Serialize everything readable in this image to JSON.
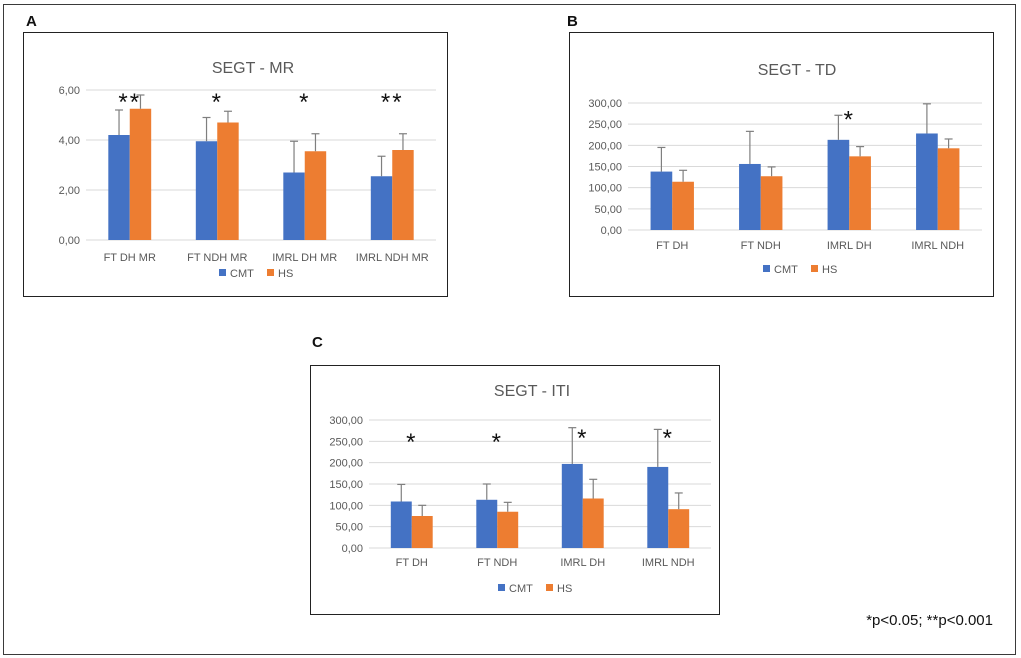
{
  "panels": {
    "a": {
      "letter": "A"
    },
    "b": {
      "letter": "B"
    },
    "c": {
      "letter": "C"
    }
  },
  "footnote": "*p<0.05; **p<0.001",
  "colors": {
    "cmt": "#4472C4",
    "hs": "#ED7D31",
    "grid": "#d9d9d9",
    "errorbar": "#7f7f7f"
  },
  "chart_data": [
    {
      "id": "A",
      "type": "bar",
      "title": "SEGT - MR",
      "categories": [
        "FT DH MR",
        "FT NDH MR",
        "IMRL DH MR",
        "IMRL NDH MR"
      ],
      "series": [
        {
          "name": "CMT",
          "values": [
            4.2,
            3.95,
            2.7,
            2.55
          ],
          "errors": [
            1.0,
            0.95,
            1.25,
            0.8
          ]
        },
        {
          "name": "HS",
          "values": [
            5.25,
            4.7,
            3.55,
            3.6
          ],
          "errors": [
            0.55,
            0.45,
            0.7,
            0.65
          ]
        }
      ],
      "ylim": [
        0,
        6
      ],
      "yticks": [
        0,
        2,
        4,
        6
      ],
      "yticklabels": [
        "0,00",
        "2,00",
        "4,00",
        "6,00"
      ],
      "annotations": [
        "**",
        "*",
        "*",
        "**"
      ],
      "legend": "bottom"
    },
    {
      "id": "B",
      "type": "bar",
      "title": "SEGT - TD",
      "categories": [
        "FT DH",
        "FT NDH",
        "IMRL DH",
        "IMRL NDH"
      ],
      "series": [
        {
          "name": "CMT",
          "values": [
            138,
            156,
            213,
            228
          ],
          "errors": [
            57,
            77,
            58,
            70
          ]
        },
        {
          "name": "HS",
          "values": [
            114,
            127,
            174,
            193
          ],
          "errors": [
            27,
            22,
            23,
            22
          ]
        }
      ],
      "ylim": [
        0,
        300
      ],
      "yticks": [
        0,
        50,
        100,
        150,
        200,
        250,
        300
      ],
      "yticklabels": [
        "0,00",
        "50,00",
        "100,00",
        "150,00",
        "200,00",
        "250,00",
        "300,00"
      ],
      "annotations": [
        "",
        "",
        "*",
        ""
      ],
      "legend": "bottom"
    },
    {
      "id": "C",
      "type": "bar",
      "title": "SEGT - ITI",
      "categories": [
        "FT DH",
        "FT NDH",
        "IMRL DH",
        "IMRL NDH"
      ],
      "series": [
        {
          "name": "CMT",
          "values": [
            109,
            113,
            197,
            190
          ],
          "errors": [
            40,
            37,
            85,
            88
          ]
        },
        {
          "name": "HS",
          "values": [
            75,
            85,
            116,
            91
          ],
          "errors": [
            25,
            22,
            45,
            38
          ]
        }
      ],
      "ylim": [
        0,
        300
      ],
      "yticks": [
        0,
        50,
        100,
        150,
        200,
        250,
        300
      ],
      "yticklabels": [
        "0,00",
        "50,00",
        "100,00",
        "150,00",
        "200,00",
        "250,00",
        "300,00"
      ],
      "annotations": [
        "*",
        "*",
        "*",
        "*"
      ],
      "legend": "bottom"
    }
  ]
}
